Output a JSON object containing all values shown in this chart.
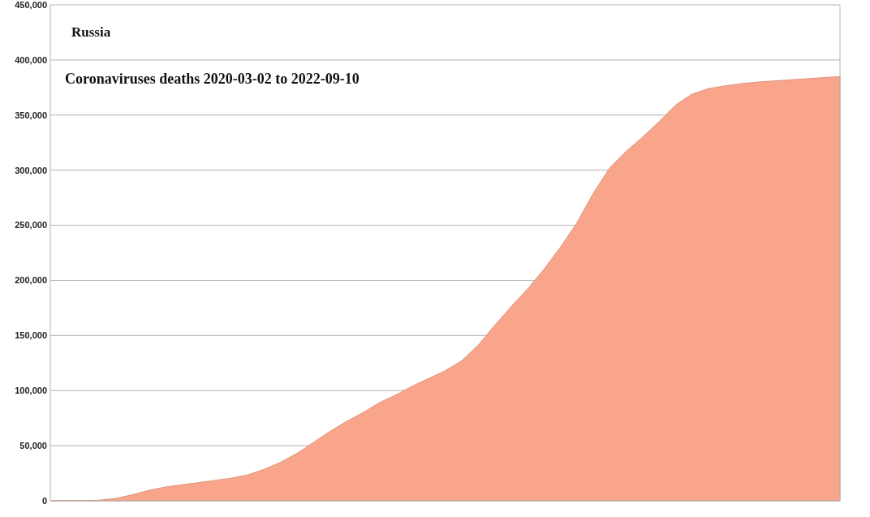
{
  "chart_data": {
    "type": "area",
    "title": "Russia",
    "subtitle": "Coronaviruses deaths 2020-03-02 to 2022-09-10",
    "categories": [
      null,
      null,
      null,
      null,
      null,
      null,
      null,
      null,
      null,
      null,
      null,
      null,
      null,
      null,
      null,
      null,
      null,
      null,
      null,
      null,
      null,
      null,
      null,
      null,
      null,
      null,
      null,
      null,
      null,
      null,
      null,
      null,
      null,
      null,
      null,
      null,
      null,
      null,
      null,
      null,
      null,
      null,
      null,
      null,
      null,
      null,
      null,
      null,
      null
    ],
    "series": [
      {
        "color": "#f9a58c",
        "values": [
          0,
          0,
          100,
          600,
          2200,
          5500,
          9500,
          12500,
          14500,
          16500,
          18500,
          20500,
          23500,
          28500,
          35000,
          43000,
          53000,
          63000,
          72000,
          80000,
          89000,
          96000,
          104000,
          111000,
          118000,
          127000,
          141000,
          159000,
          176000,
          192000,
          210000,
          230000,
          252000,
          279000,
          302000,
          317000,
          330000,
          344000,
          359000,
          369000,
          374000,
          376500,
          378500,
          380000,
          381000,
          382000,
          383000,
          384000,
          385000
        ]
      }
    ],
    "ylim": [
      0,
      450000
    ],
    "yticks": [
      {
        "value": 0,
        "label": "0"
      },
      {
        "value": 50000,
        "label": "50,000"
      },
      {
        "value": 100000,
        "label": "100,000"
      },
      {
        "value": 150000,
        "label": "150,000"
      },
      {
        "value": 200000,
        "label": "200,000"
      },
      {
        "value": 250000,
        "label": "250,000"
      },
      {
        "value": 300000,
        "label": "300,000"
      },
      {
        "value": 350000,
        "label": "350,000"
      },
      {
        "value": 400000,
        "label": "400,000"
      },
      {
        "value": 450000,
        "label": "450,000"
      }
    ],
    "grid": "y",
    "tick_labels": "y"
  }
}
